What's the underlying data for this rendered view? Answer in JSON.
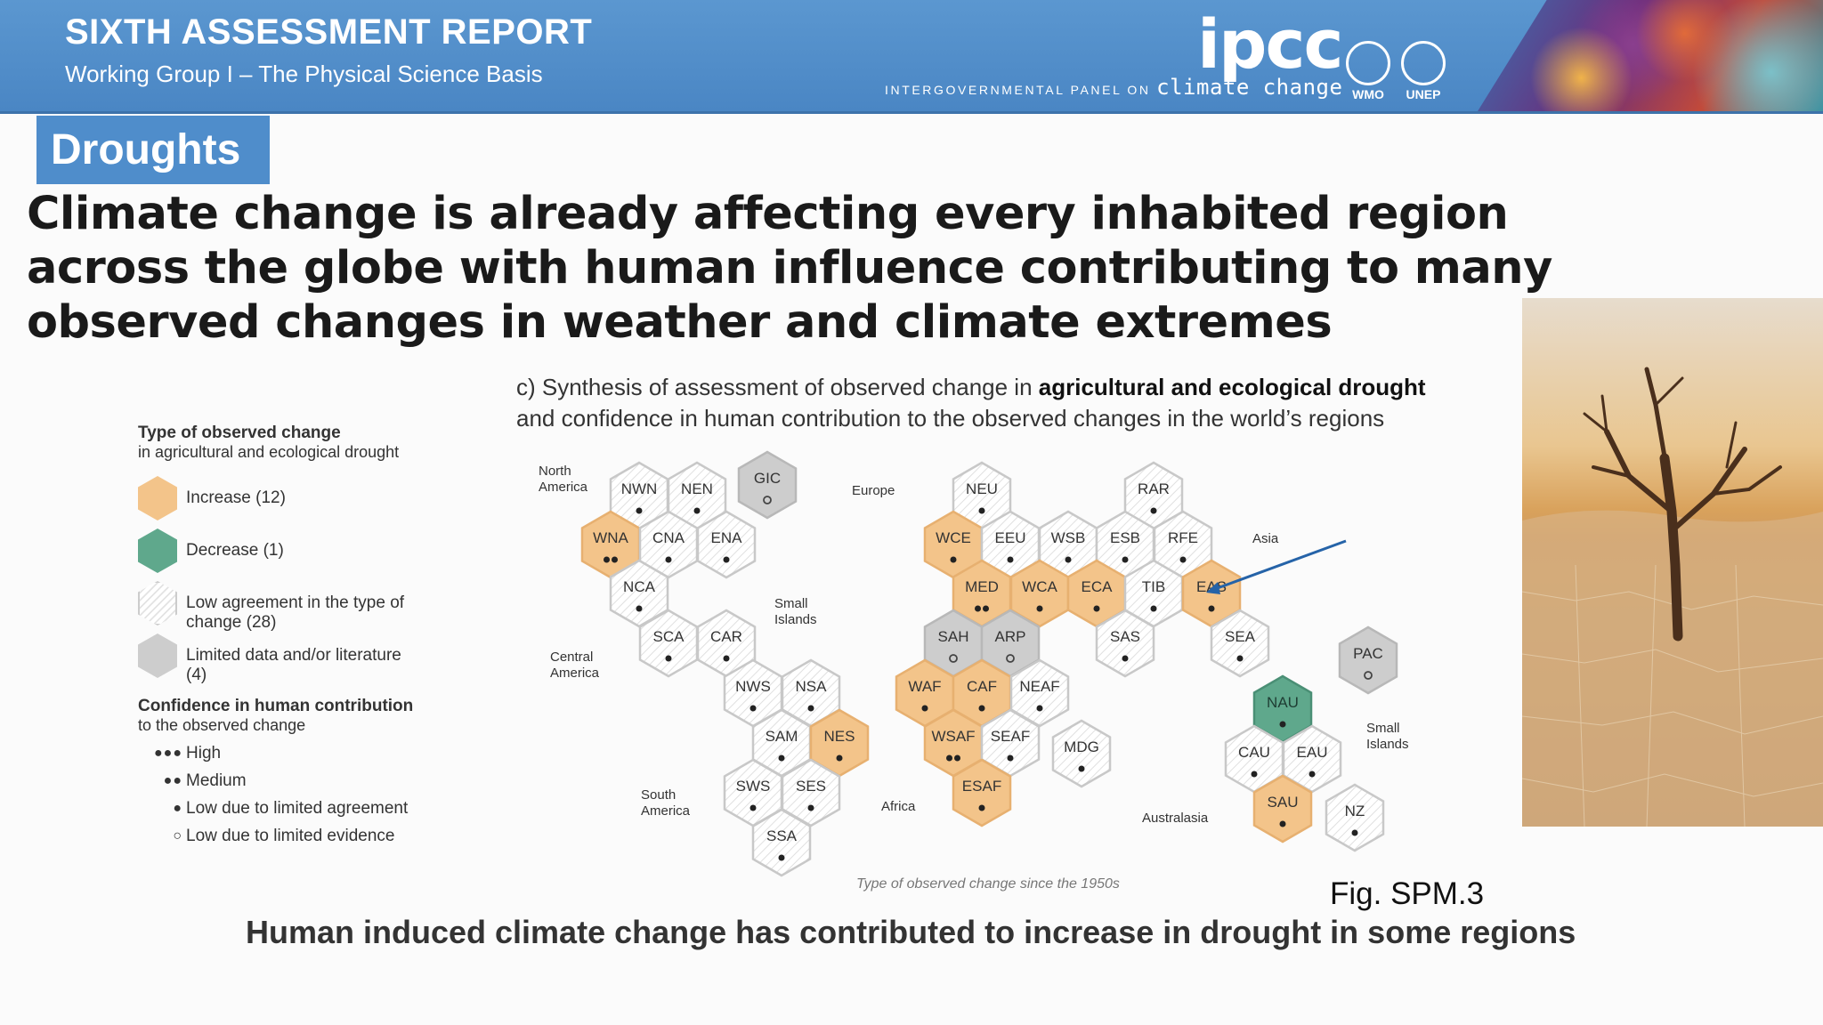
{
  "header": {
    "title": "SIXTH ASSESSMENT REPORT",
    "subtitle": "Working Group I – The Physical Science Basis",
    "logo": "ipcc",
    "tagline_prefix": "INTERGOVERNMENTAL PANEL ON",
    "tagline_main": "climate change",
    "org1": "WMO",
    "org2": "UNEP"
  },
  "tag": "Droughts",
  "headline": "Climate change is already affecting every inhabited region across the globe with human influence contributing to many observed changes in weather and climate extremes",
  "figure": {
    "caption_pre": "c) Synthesis of assessment of observed change in ",
    "caption_bold": "agricultural and ecological drought",
    "caption_post": "and confidence in human contribution to the observed changes in the world’s regions",
    "note": "Type of observed change since the 1950s",
    "ref": "Fig. SPM.3"
  },
  "legend": {
    "title": "Type of observed change",
    "subtitle": "in agricultural and ecological drought",
    "items": [
      {
        "label": "Increase (12)",
        "color": "#f3c48a"
      },
      {
        "label": "Decrease (1)",
        "color": "#5fa88c"
      },
      {
        "label": "Low agreement in the type of change (28)",
        "color": "#ffffff"
      },
      {
        "label": "Limited data and/or literature (4)",
        "color": "#cdcdcd"
      }
    ],
    "confidence_title": "Confidence in human contribution",
    "confidence_subtitle": "to the observed change",
    "confidence": [
      {
        "dots": "●●●",
        "label": "High"
      },
      {
        "dots": "●●",
        "label": "Medium"
      },
      {
        "dots": "●",
        "label": "Low due to limited agreement"
      },
      {
        "dots": "○",
        "label": "Low due to limited evidence"
      }
    ]
  },
  "group_labels": [
    {
      "text": "North America"
    },
    {
      "text": "Europe"
    },
    {
      "text": "Asia"
    },
    {
      "text": "Small Islands"
    },
    {
      "text": "Central America"
    },
    {
      "text": "South America"
    },
    {
      "text": "Africa"
    },
    {
      "text": "Australasia"
    },
    {
      "text": "Small Islands"
    }
  ],
  "regions": [
    {
      "code": "NWN",
      "type": "low",
      "conf": "1"
    },
    {
      "code": "NEN",
      "type": "low",
      "conf": "1"
    },
    {
      "code": "GIC",
      "type": "limited",
      "conf": "0"
    },
    {
      "code": "WNA",
      "type": "increase",
      "conf": "2"
    },
    {
      "code": "CNA",
      "type": "low",
      "conf": "1"
    },
    {
      "code": "ENA",
      "type": "low",
      "conf": "1"
    },
    {
      "code": "NCA",
      "type": "low",
      "conf": "1"
    },
    {
      "code": "SCA",
      "type": "low",
      "conf": "1"
    },
    {
      "code": "CAR",
      "type": "low",
      "conf": "1"
    },
    {
      "code": "NWS",
      "type": "low",
      "conf": "1"
    },
    {
      "code": "NSA",
      "type": "low",
      "conf": "1"
    },
    {
      "code": "SAM",
      "type": "low",
      "conf": "1"
    },
    {
      "code": "NES",
      "type": "increase",
      "conf": "1"
    },
    {
      "code": "SWS",
      "type": "low",
      "conf": "1"
    },
    {
      "code": "SES",
      "type": "low",
      "conf": "1"
    },
    {
      "code": "SSA",
      "type": "low",
      "conf": "1"
    },
    {
      "code": "NEU",
      "type": "low",
      "conf": "1"
    },
    {
      "code": "RAR",
      "type": "low",
      "conf": "1"
    },
    {
      "code": "WCE",
      "type": "increase",
      "conf": "1"
    },
    {
      "code": "EEU",
      "type": "low",
      "conf": "1"
    },
    {
      "code": "WSB",
      "type": "low",
      "conf": "1"
    },
    {
      "code": "ESB",
      "type": "low",
      "conf": "1"
    },
    {
      "code": "RFE",
      "type": "low",
      "conf": "1"
    },
    {
      "code": "MED",
      "type": "increase",
      "conf": "2"
    },
    {
      "code": "WCA",
      "type": "increase",
      "conf": "1"
    },
    {
      "code": "ECA",
      "type": "increase",
      "conf": "1"
    },
    {
      "code": "TIB",
      "type": "low",
      "conf": "1"
    },
    {
      "code": "EAS",
      "type": "increase",
      "conf": "1"
    },
    {
      "code": "SAH",
      "type": "limited",
      "conf": "0"
    },
    {
      "code": "ARP",
      "type": "limited",
      "conf": "0"
    },
    {
      "code": "SAS",
      "type": "low",
      "conf": "1"
    },
    {
      "code": "SEA",
      "type": "low",
      "conf": "1"
    },
    {
      "code": "PAC",
      "type": "limited",
      "conf": "0"
    },
    {
      "code": "WAF",
      "type": "increase",
      "conf": "1"
    },
    {
      "code": "CAF",
      "type": "increase",
      "conf": "1"
    },
    {
      "code": "NEAF",
      "type": "low",
      "conf": "1"
    },
    {
      "code": "NAU",
      "type": "decrease",
      "conf": "1"
    },
    {
      "code": "WSAF",
      "type": "increase",
      "conf": "2"
    },
    {
      "code": "SEAF",
      "type": "low",
      "conf": "1"
    },
    {
      "code": "MDG",
      "type": "low",
      "conf": "1"
    },
    {
      "code": "CAU",
      "type": "low",
      "conf": "1"
    },
    {
      "code": "EAU",
      "type": "low",
      "conf": "1"
    },
    {
      "code": "ESAF",
      "type": "increase",
      "conf": "1"
    },
    {
      "code": "SAU",
      "type": "increase",
      "conf": "1"
    },
    {
      "code": "NZ",
      "type": "low",
      "conf": "1"
    }
  ],
  "bottom_text": "Human induced climate change has contributed to increase in drought in some regions"
}
